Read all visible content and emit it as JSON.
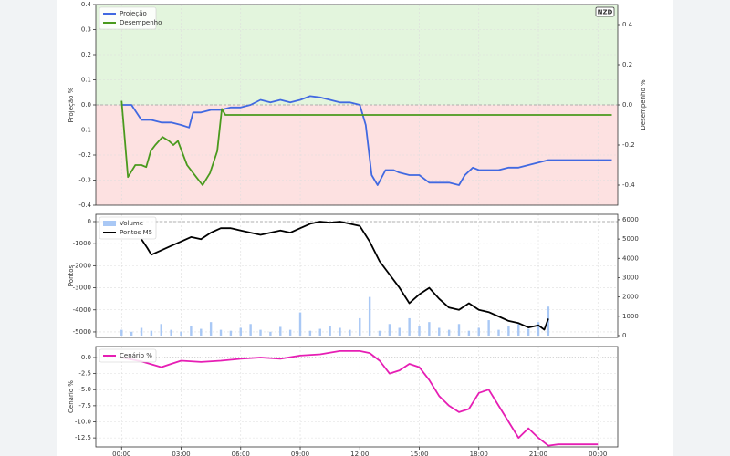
{
  "chart_data": [
    {
      "type": "line",
      "annotation": "NZD",
      "ylabel": "Projeção %",
      "y2label": "Desempenho %",
      "xlim": [
        -1.3,
        25
      ],
      "ylim": [
        -0.4,
        0.4
      ],
      "yticks": [
        0.4,
        0.3,
        0.2,
        0.1,
        {
          "value": 0,
          "label": "0.0"
        },
        -0.1,
        -0.2,
        -0.3,
        -0.4
      ],
      "y2lim": [
        -0.5,
        0.5
      ],
      "y2ticks": [
        0.4,
        0.2,
        {
          "value": 0,
          "label": "0.0"
        },
        -0.2,
        -0.4
      ],
      "grid": true,
      "zones": {
        "positive": "#e3f5dd",
        "negative": "#fde1e1"
      },
      "legend": "upper left",
      "series": [
        {
          "name": "Projeção",
          "color": "#4169e1",
          "x": [
            0,
            0.5,
            1,
            1.5,
            2,
            2.5,
            3,
            3.4,
            3.6,
            4,
            4.5,
            5,
            5.5,
            6,
            6.5,
            7,
            7.5,
            8,
            8.5,
            9,
            9.5,
            10,
            10.5,
            11,
            11.5,
            12,
            12.3,
            12.6,
            12.9,
            13.3,
            13.7,
            14,
            14.5,
            15,
            15.5,
            16,
            16.5,
            17,
            17.3,
            17.7,
            18,
            18.5,
            19,
            19.5,
            20,
            20.5,
            21,
            21.5,
            22,
            23,
            24,
            24.7
          ],
          "values": [
            0.0,
            0.0,
            -0.06,
            -0.06,
            -0.07,
            -0.07,
            -0.08,
            -0.09,
            -0.03,
            -0.03,
            -0.02,
            -0.02,
            -0.01,
            -0.01,
            0.0,
            0.02,
            0.01,
            0.02,
            0.01,
            0.02,
            0.035,
            0.03,
            0.02,
            0.01,
            0.01,
            0.0,
            -0.08,
            -0.28,
            -0.32,
            -0.26,
            -0.26,
            -0.27,
            -0.28,
            -0.28,
            -0.31,
            -0.31,
            -0.31,
            -0.32,
            -0.28,
            -0.25,
            -0.26,
            -0.26,
            -0.26,
            -0.25,
            -0.25,
            -0.24,
            -0.23,
            -0.22,
            -0.22,
            -0.22,
            -0.22,
            -0.22
          ]
        },
        {
          "name": "Desempenho",
          "color": "#4a9a1e",
          "axis": "y2",
          "x": [
            0,
            0.32,
            0.69,
            1.0,
            1.24,
            1.47,
            1.7,
            2.06,
            2.39,
            2.61,
            2.84,
            3.3,
            3.76,
            4.08,
            4.45,
            4.82,
            5.05,
            5.23,
            24.7
          ],
          "values": [
            0.02,
            -0.36,
            -0.3,
            -0.3,
            -0.31,
            -0.23,
            -0.2,
            -0.16,
            -0.18,
            -0.2,
            -0.18,
            -0.3,
            -0.36,
            -0.4,
            -0.34,
            -0.23,
            -0.02,
            -0.05,
            -0.05
          ]
        }
      ]
    },
    {
      "type": "line",
      "ylabel": "Pontos",
      "xlim": [
        -1.3,
        25
      ],
      "ylim": [
        -5250,
        330
      ],
      "yticks": [
        0,
        -1000,
        -2000,
        -3000,
        -4000,
        -5000
      ],
      "y2lim": [
        -95,
        6280
      ],
      "y2ticks": [
        0,
        1000,
        2000,
        3000,
        4000,
        5000,
        6000
      ],
      "grid": true,
      "legend": "upper left",
      "series": [
        {
          "name": "Volume",
          "type": "bar",
          "color": "#a9c8f5",
          "axis": "y2",
          "x": [
            0,
            0.5,
            1,
            1.5,
            2,
            2.5,
            3,
            3.5,
            4,
            4.5,
            5,
            5.5,
            6,
            6.5,
            7,
            7.5,
            8,
            8.5,
            9,
            9.5,
            10,
            10.5,
            11,
            11.5,
            12,
            12.5,
            13,
            13.5,
            14,
            14.5,
            15,
            15.5,
            16,
            16.5,
            17,
            17.5,
            18,
            18.5,
            19,
            19.5,
            20,
            20.5,
            21,
            21.5
          ],
          "values": [
            300,
            200,
            400,
            250,
            600,
            300,
            200,
            500,
            350,
            700,
            300,
            250,
            400,
            600,
            300,
            200,
            450,
            300,
            1200,
            250,
            350,
            500,
            400,
            300,
            900,
            2000,
            250,
            600,
            400,
            900,
            500,
            700,
            400,
            300,
            600,
            250,
            400,
            800,
            300,
            500,
            600,
            350,
            700,
            1500
          ]
        },
        {
          "name": "Pontos M5",
          "color": "#000000",
          "x": [
            1,
            1.3,
            1.5,
            2,
            2.5,
            3,
            3.5,
            4,
            4.5,
            5,
            5.5,
            6,
            6.5,
            7,
            7.5,
            8,
            8.5,
            9,
            9.5,
            10,
            10.5,
            11,
            11.5,
            12,
            12.5,
            13,
            13.5,
            14,
            14.5,
            15,
            15.5,
            16,
            16.5,
            17,
            17.5,
            18,
            18.5,
            19,
            19.5,
            20,
            20.5,
            21,
            21.3,
            21.5
          ],
          "values": [
            -800,
            -1200,
            -1500,
            -1300,
            -1100,
            -900,
            -700,
            -800,
            -500,
            -300,
            -300,
            -400,
            -500,
            -600,
            -500,
            -400,
            -500,
            -300,
            -100,
            0,
            -50,
            0,
            -100,
            -200,
            -900,
            -1800,
            -2400,
            -3000,
            -3700,
            -3300,
            -3000,
            -3500,
            -3900,
            -4000,
            -3700,
            -4000,
            -4100,
            -4300,
            -4500,
            -4600,
            -4800,
            -4700,
            -4900,
            -4400
          ]
        }
      ]
    },
    {
      "type": "line",
      "ylabel": "Cenário %",
      "xlim": [
        -1.3,
        25
      ],
      "ylim": [
        -13.9,
        1.7
      ],
      "yticks": [
        {
          "value": 0,
          "label": "0.0"
        },
        -2.5,
        {
          "value": -5,
          "label": "-5.0"
        },
        -7.5,
        {
          "value": -10,
          "label": "-10.0"
        },
        -12.5
      ],
      "xticks": [
        {
          "value": 0,
          "label": "00:00"
        },
        {
          "value": 3,
          "label": "03:00"
        },
        {
          "value": 6,
          "label": "06:00"
        },
        {
          "value": 9,
          "label": "09:00"
        },
        {
          "value": 12,
          "label": "12:00"
        },
        {
          "value": 15,
          "label": "15:00"
        },
        {
          "value": 18,
          "label": "18:00"
        },
        {
          "value": 21,
          "label": "21:00"
        },
        {
          "value": 24,
          "label": "00:00"
        }
      ],
      "grid": true,
      "legend": "upper left",
      "series": [
        {
          "name": "Cenário %",
          "color": "#e61eb4",
          "x": [
            0,
            1,
            2,
            2.5,
            3,
            4,
            5,
            6,
            7,
            8,
            9,
            10,
            11,
            12,
            12.5,
            13,
            13.5,
            14,
            14.5,
            15,
            15.5,
            16,
            16.5,
            17,
            17.5,
            18,
            18.5,
            19,
            19.5,
            20,
            20.5,
            21,
            21.5,
            22,
            24
          ],
          "values": [
            0,
            -0.6,
            -1.5,
            -1.0,
            -0.5,
            -0.7,
            -0.5,
            -0.2,
            0,
            -0.2,
            0.3,
            0.5,
            1.0,
            1.0,
            0.7,
            -0.5,
            -2.5,
            -2.0,
            -1.0,
            -1.5,
            -3.5,
            -6.0,
            -7.5,
            -8.5,
            -8.0,
            -5.5,
            -5.0,
            -7.5,
            -10.0,
            -12.5,
            -11.0,
            -12.5,
            -13.7,
            -13.5,
            -13.5
          ]
        }
      ]
    }
  ]
}
